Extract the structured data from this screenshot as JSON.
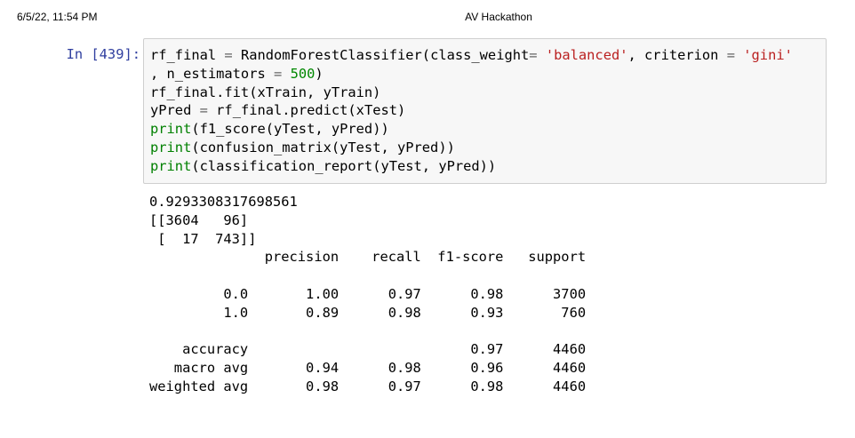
{
  "header": {
    "date": "6/5/22, 11:54 PM",
    "title": "AV Hackathon"
  },
  "cell": {
    "prompt": "In [439]:",
    "code": {
      "line1": {
        "a": "rf_final ",
        "eq": "=",
        "b": " RandomForestClassifier(class_weight",
        "eq2": "=",
        "c": " ",
        "s1": "'balanced'",
        "d": ", criterion ",
        "eq3": "=",
        "e": " ",
        "s2": "'gini'"
      },
      "line2": {
        "a": ", n_estimators ",
        "eq": "=",
        "b": " ",
        "n": "500",
        "c": ")"
      },
      "line3": "rf_final.fit(xTrain, yTrain)",
      "line4": {
        "a": "yPred ",
        "eq": "=",
        "b": " rf_final.predict(xTest)"
      },
      "line5": {
        "fn": "print",
        "rest": "(f1_score(yTest, yPred))"
      },
      "line6": {
        "fn": "print",
        "rest": "(confusion_matrix(yTest, yPred))"
      },
      "line7": {
        "fn": "print",
        "rest": "(classification_report(yTest, yPred))"
      }
    }
  },
  "output": {
    "lines": [
      "0.9293308317698561",
      "[[3604   96]",
      " [  17  743]]",
      "              precision    recall  f1-score   support",
      "",
      "         0.0       1.00      0.97      0.98      3700",
      "         1.0       0.89      0.98      0.93       760",
      "",
      "    accuracy                           0.97      4460",
      "   macro avg       0.94      0.98      0.96      4460",
      "weighted avg       0.98      0.97      0.98      4460"
    ]
  }
}
